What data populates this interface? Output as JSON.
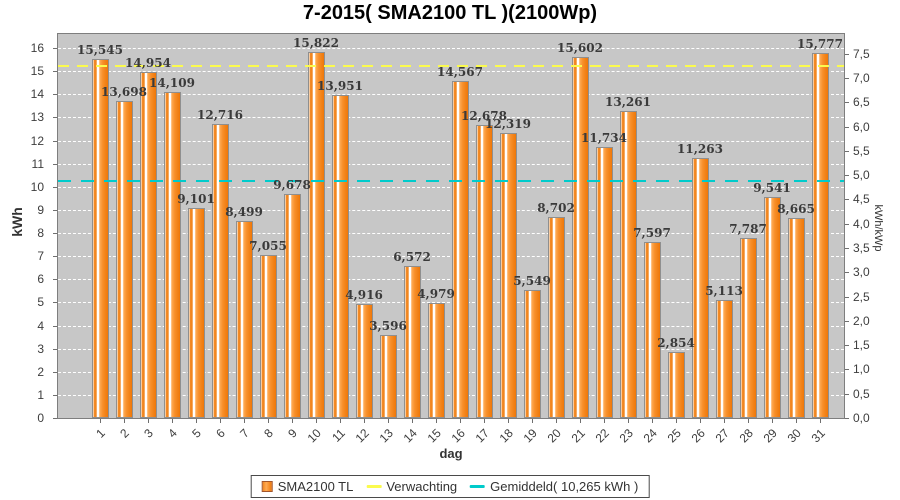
{
  "title": "7-2015( SMA2100 TL )(2100Wp)",
  "chart_data": {
    "type": "bar",
    "title": "7-2015( SMA2100 TL )(2100Wp)",
    "xlabel": "dag",
    "ylabel_left": "kWh",
    "ylabel_right": "kWh/kWp",
    "ylim_left": [
      0,
      16
    ],
    "ylim_right": [
      0,
      7.5
    ],
    "kwp_factor": 2.1,
    "grid": "horizontal white dashed at each integer kWh",
    "legend_position": "bottom",
    "plot_bg": "#c7c7c7",
    "categories": [
      "1",
      "2",
      "3",
      "4",
      "5",
      "6",
      "7",
      "8",
      "9",
      "10",
      "11",
      "12",
      "13",
      "14",
      "15",
      "16",
      "17",
      "18",
      "19",
      "20",
      "21",
      "22",
      "23",
      "24",
      "25",
      "26",
      "27",
      "28",
      "29",
      "30",
      "31"
    ],
    "series": [
      {
        "name": "SMA2100 TL",
        "unit": "kWh",
        "color": "#f5831f",
        "values": [
          15.545,
          13.698,
          14.954,
          14.109,
          9.101,
          12.716,
          8.499,
          7.055,
          9.678,
          15.822,
          13.951,
          4.916,
          3.596,
          6.572,
          4.979,
          14.567,
          12.678,
          12.319,
          5.549,
          8.702,
          15.602,
          11.734,
          13.261,
          7.597,
          2.854,
          11.263,
          5.113,
          7.787,
          9.541,
          8.665,
          15.777
        ]
      }
    ],
    "value_labels": [
      "15,545",
      "13,698",
      "14,954",
      "14,109",
      "9,101",
      "12,716",
      "8,499",
      "7,055",
      "9,678",
      "15,822",
      "13,951",
      "4,916",
      "3,596",
      "6,572",
      "4,979",
      "14,567",
      "12,678",
      "12,319",
      "5,549",
      "8,702",
      "15,602",
      "11,734",
      "13,261",
      "7,597",
      "2,854",
      "11,263",
      "5,113",
      "7,787",
      "9,541",
      "8,665",
      "15,777"
    ],
    "left_axis_ticks": [
      "0",
      "1",
      "2",
      "3",
      "4",
      "5",
      "6",
      "7",
      "8",
      "9",
      "10",
      "11",
      "12",
      "13",
      "14",
      "15",
      "16"
    ],
    "right_axis_ticks": [
      "0,0",
      "0,5",
      "1,0",
      "1,5",
      "2,0",
      "2,5",
      "3,0",
      "3,5",
      "4,0",
      "4,5",
      "5,0",
      "5,5",
      "6,0",
      "6,5",
      "7,0",
      "7,5"
    ],
    "reference_lines": [
      {
        "name": "Verwachting",
        "value_kwh": 15.22,
        "color": "#fbfb4e",
        "style": "dashed"
      },
      {
        "name": "Gemiddeld",
        "value_kwh": 10.265,
        "color": "#00cbcb",
        "style": "dashed"
      }
    ]
  },
  "legend": {
    "items": [
      {
        "label": "SMA2100 TL",
        "swatch": "bar",
        "color": "#f5831f"
      },
      {
        "label": "Verwachting",
        "swatch": "line",
        "color": "#fbfb4e"
      },
      {
        "label": "Gemiddeld( 10,265 kWh )",
        "swatch": "line",
        "color": "#00cbcb"
      }
    ]
  }
}
